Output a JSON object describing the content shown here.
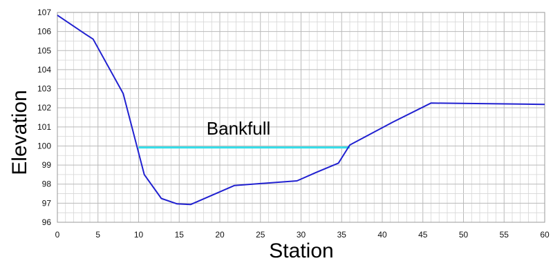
{
  "chart_data": {
    "type": "line",
    "title": "",
    "xlabel": "Station",
    "ylabel": "Elevation",
    "xlim": [
      0,
      60
    ],
    "ylim": [
      96,
      107
    ],
    "xticks": [
      "0",
      "5",
      "10",
      "15",
      "20",
      "25",
      "30",
      "35",
      "40",
      "45",
      "50",
      "55",
      "60"
    ],
    "yticks": [
      "96",
      "97",
      "98",
      "99",
      "100",
      "101",
      "102",
      "103",
      "104",
      "105",
      "106",
      "107"
    ],
    "grid": true,
    "grid_minor": true,
    "legend": "none",
    "series": [
      {
        "color": "#2020d0",
        "x": [
          0,
          3.5,
          4.4,
          8.1,
          10.7,
          12.8,
          14.7,
          16.4,
          21.8,
          29.5,
          31.8,
          34.6,
          36.0,
          41.3,
          46.0,
          60.0
        ],
        "y": [
          106.85,
          105.85,
          105.6,
          102.75,
          98.5,
          97.25,
          96.97,
          96.93,
          97.93,
          98.17,
          98.6,
          99.1,
          100.05,
          101.25,
          102.25,
          102.18
        ]
      }
    ],
    "annotations": [
      {
        "text": "Bankfull",
        "x": 22.3,
        "y": 100.6
      }
    ],
    "reference_lines": [
      {
        "label": "Bankfull",
        "color": "#33dde8",
        "x": [
          10.0,
          36.0
        ],
        "y": [
          99.92,
          99.92
        ]
      }
    ]
  }
}
